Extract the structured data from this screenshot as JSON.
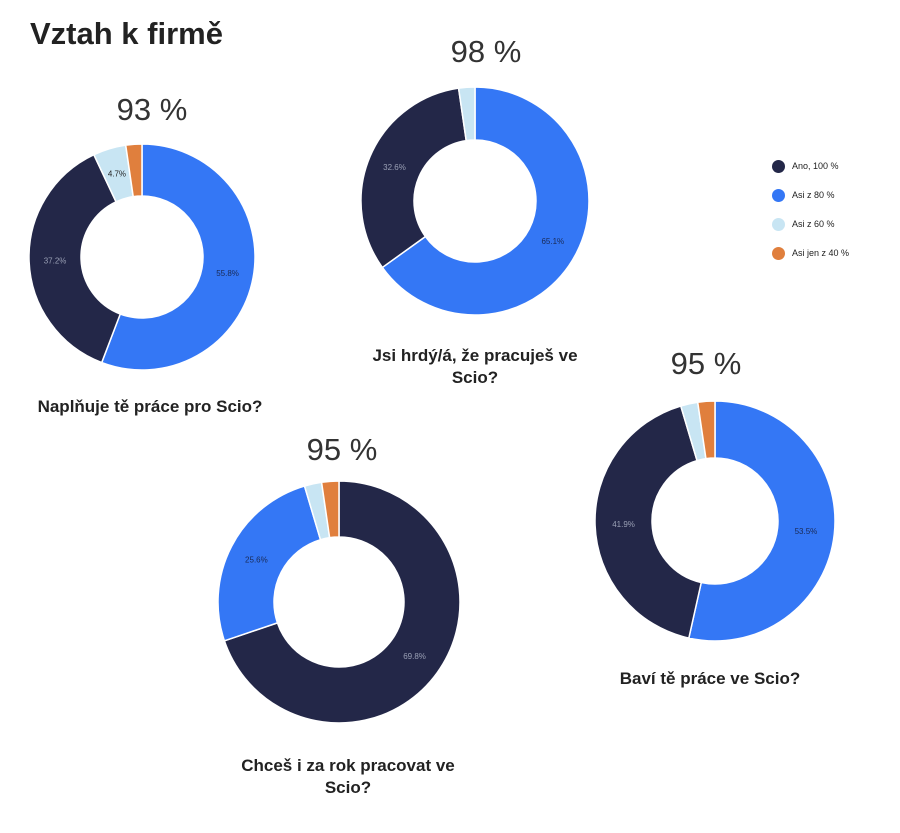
{
  "title": "Vztah k firmě",
  "colors": {
    "ano": "#232748",
    "asi80": "#3477f5",
    "asi60": "#c8e5f3",
    "asi40": "#e07f3d"
  },
  "legend": [
    {
      "label": "Ano, 100 %",
      "color": "#232748"
    },
    {
      "label": "Asi z 80 %",
      "color": "#3477f5"
    },
    {
      "label": "Asi z 60 %",
      "color": "#c8e5f3"
    },
    {
      "label": "Asi jen z 40 %",
      "color": "#e07f3d"
    }
  ],
  "chart_data": [
    {
      "type": "pie",
      "title": "93 %",
      "question": "Naplňuje tě práce pro Scio?",
      "categories": [
        "Asi z 80 %",
        "Ano, 100 %",
        "Asi z 60 %",
        "Asi jen z 40 %"
      ],
      "values": [
        55.8,
        37.2,
        4.7,
        2.3
      ],
      "labels": [
        "55.8%",
        "37.2%",
        "4.7%",
        ""
      ]
    },
    {
      "type": "pie",
      "title": "98 %",
      "question": "Jsi hrdý/á, že pracuješ ve Scio?",
      "categories": [
        "Asi z 80 %",
        "Ano, 100 %",
        "Asi z 60 %"
      ],
      "values": [
        65.1,
        32.6,
        2.3
      ],
      "labels": [
        "65.1%",
        "32.6%",
        ""
      ]
    },
    {
      "type": "pie",
      "title": "95 %",
      "question": "Chceš i za rok pracovat ve Scio?",
      "categories": [
        "Ano, 100 %",
        "Asi z 80 %",
        "Asi z 60 %",
        "Asi jen z 40 %"
      ],
      "values": [
        69.8,
        25.6,
        2.3,
        2.3
      ],
      "labels": [
        "69.8%",
        "25.6%",
        "",
        ""
      ]
    },
    {
      "type": "pie",
      "title": "95 %",
      "question": "Baví tě práce ve Scio?",
      "categories": [
        "Asi z 80 %",
        "Ano, 100 %",
        "Asi z 60 %",
        "Asi jen z 40 %"
      ],
      "values": [
        53.5,
        41.9,
        2.3,
        2.3
      ],
      "labels": [
        "53.5%",
        "41.9%",
        "",
        ""
      ]
    }
  ]
}
